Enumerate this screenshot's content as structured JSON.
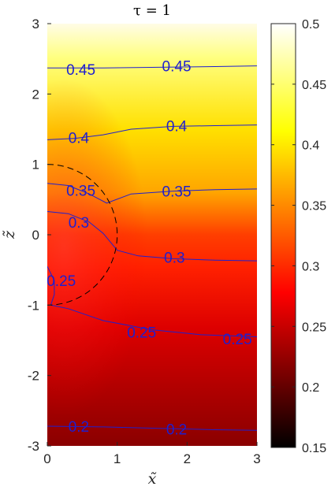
{
  "chart_data": {
    "type": "heatmap",
    "title": "τ  = 1",
    "xlabel": "x̃",
    "ylabel": "z̃",
    "xlim": [
      0,
      3
    ],
    "ylim": [
      -3,
      3
    ],
    "x_ticks": [
      "0",
      "1",
      "2",
      "3"
    ],
    "y_ticks": [
      "3",
      "2",
      "1",
      "0",
      "-1",
      "-2",
      "-3"
    ],
    "colormap": "hot",
    "clim": [
      0.15,
      0.5
    ],
    "colorbar_ticks": [
      "0.5",
      "0.45",
      "0.4",
      "0.35",
      "0.3",
      "0.25",
      "0.2",
      "0.15"
    ],
    "contour_color": "#1f1fcf",
    "dashed_circle": {
      "center": [
        0,
        0
      ],
      "radius": 1
    },
    "contours": [
      {
        "level": 0.45,
        "points": [
          [
            0,
            2.37
          ],
          [
            0.8,
            2.37
          ],
          [
            1.6,
            2.38
          ],
          [
            2.4,
            2.39
          ],
          [
            3.0,
            2.4
          ]
        ],
        "labels": [
          {
            "text": "0.45",
            "x": 0.48,
            "y": 2.35
          },
          {
            "text": "0.45",
            "x": 1.85,
            "y": 2.4
          }
        ]
      },
      {
        "level": 0.4,
        "points": [
          [
            0,
            1.35
          ],
          [
            0.4,
            1.37
          ],
          [
            0.8,
            1.42
          ],
          [
            1.2,
            1.5
          ],
          [
            1.8,
            1.54
          ],
          [
            2.4,
            1.55
          ],
          [
            3.0,
            1.56
          ]
        ],
        "labels": [
          {
            "text": "0.4",
            "x": 0.45,
            "y": 1.38
          },
          {
            "text": "0.4",
            "x": 1.85,
            "y": 1.55
          }
        ]
      },
      {
        "level": 0.35,
        "points": [
          [
            0,
            0.73
          ],
          [
            0.3,
            0.7
          ],
          [
            0.6,
            0.58
          ],
          [
            0.85,
            0.45
          ],
          [
            1.2,
            0.58
          ],
          [
            1.8,
            0.62
          ],
          [
            2.4,
            0.64
          ],
          [
            3.0,
            0.65
          ]
        ],
        "labels": [
          {
            "text": "0.35",
            "x": 0.48,
            "y": 0.63
          },
          {
            "text": "0.35",
            "x": 1.85,
            "y": 0.62
          }
        ]
      },
      {
        "level": 0.3,
        "points": [
          [
            0,
            0.33
          ],
          [
            0.3,
            0.3
          ],
          [
            0.6,
            0.18
          ],
          [
            0.8,
            0.02
          ],
          [
            1.0,
            -0.22
          ],
          [
            1.3,
            -0.3
          ],
          [
            1.8,
            -0.34
          ],
          [
            2.4,
            -0.36
          ],
          [
            3.0,
            -0.37
          ]
        ],
        "labels": [
          {
            "text": "0.3",
            "x": 0.45,
            "y": 0.18
          },
          {
            "text": "0.3",
            "x": 1.82,
            "y": -0.32
          }
        ]
      },
      {
        "level": 0.25,
        "points": [
          [
            0,
            -0.45
          ],
          [
            0.1,
            -0.65
          ],
          [
            0.1,
            -0.85
          ],
          [
            0.05,
            -1.0
          ],
          [
            0.3,
            -1.05
          ],
          [
            0.8,
            -1.22
          ],
          [
            1.5,
            -1.35
          ],
          [
            2.2,
            -1.42
          ],
          [
            3.0,
            -1.45
          ]
        ],
        "labels": [
          {
            "text": "0.25",
            "x": 0.2,
            "y": -0.65
          },
          {
            "text": "0.25",
            "x": 1.35,
            "y": -1.38
          },
          {
            "text": "0.25",
            "x": 2.72,
            "y": -1.48
          }
        ]
      },
      {
        "level": 0.2,
        "points": [
          [
            0,
            -2.72
          ],
          [
            0.8,
            -2.73
          ],
          [
            1.6,
            -2.75
          ],
          [
            2.4,
            -2.77
          ],
          [
            3.0,
            -2.78
          ]
        ],
        "labels": [
          {
            "text": "0.2",
            "x": 0.45,
            "y": -2.72
          },
          {
            "text": "0.2",
            "x": 1.85,
            "y": -2.76
          }
        ]
      }
    ]
  }
}
